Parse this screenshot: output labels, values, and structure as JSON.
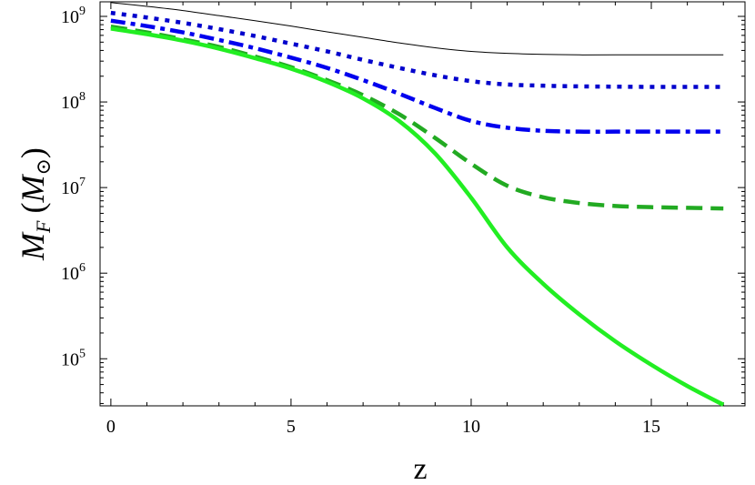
{
  "chart_data": {
    "type": "line",
    "title": "",
    "xlabel": "z",
    "ylabel": {
      "main": "M",
      "sub": "F",
      "paren_open": "(",
      "unit_main": "M",
      "unit_sub": "⊙",
      "paren_close": ")"
    },
    "xlim": [
      -0.3,
      17.6
    ],
    "ylim_log10": [
      4.45,
      9.17
    ],
    "yscale": "log",
    "grid": false,
    "x_ticks": [
      {
        "value": 0,
        "label": "0"
      },
      {
        "value": 5,
        "label": "5"
      },
      {
        "value": 10,
        "label": "10"
      },
      {
        "value": 15,
        "label": "15"
      }
    ],
    "y_ticks": [
      {
        "value": 100000,
        "base": "10",
        "exp": "5"
      },
      {
        "value": 1000000,
        "base": "10",
        "exp": "6"
      },
      {
        "value": 10000000,
        "base": "10",
        "exp": "7"
      },
      {
        "value": 100000000,
        "base": "10",
        "exp": "8"
      },
      {
        "value": 1000000000,
        "base": "10",
        "exp": "9"
      }
    ],
    "x": [
      0,
      1,
      2,
      3,
      4,
      5,
      6,
      7,
      8,
      9,
      10,
      11,
      12,
      13,
      14,
      15,
      16,
      17
    ],
    "series": [
      {
        "color": "#000000",
        "style": "solid-thin",
        "values": [
          1450000000.0,
          1310000000.0,
          1170000000.0,
          1020000000.0,
          890000000.0,
          770000000.0,
          660000000.0,
          570000000.0,
          490000000.0,
          430000000.0,
          390000000.0,
          370000000.0,
          360000000.0,
          355000000.0,
          355000000.0,
          355000000.0,
          355000000.0,
          355000000.0
        ]
      },
      {
        "color": "#0000cc",
        "style": "dotted",
        "values": [
          1100000000.0,
          970000000.0,
          840000000.0,
          710000000.0,
          590000000.0,
          480000000.0,
          390000000.0,
          310000000.0,
          250000000.0,
          205000000.0,
          175000000.0,
          160000000.0,
          155000000.0,
          152000000.0,
          151000000.0,
          150000000.0,
          150000000.0,
          150000000.0
        ]
      },
      {
        "color": "#0000ee",
        "style": "dash-dot",
        "values": [
          890000000.0,
          770000000.0,
          650000000.0,
          530000000.0,
          425000000.0,
          330000000.0,
          250000000.0,
          180000000.0,
          125000000.0,
          85000000.0,
          60000000.0,
          50000000.0,
          46000000.0,
          45000000.0,
          45000000.0,
          45000000.0,
          45000000.0,
          45000000.0
        ]
      },
      {
        "color": "#22aa22",
        "style": "dashed",
        "values": [
          760000000.0,
          650000000.0,
          540000000.0,
          440000000.0,
          340000000.0,
          255000000.0,
          180000000.0,
          120000000.0,
          72000000.0,
          38000000.0,
          19000000.0,
          10500000.0,
          7700000.0,
          6600000.0,
          6100000.0,
          5900000.0,
          5800000.0,
          5700000.0
        ]
      },
      {
        "color": "#22ee22",
        "style": "solid-thick",
        "values": [
          720000000.0,
          620000000.0,
          520000000.0,
          420000000.0,
          325000000.0,
          245000000.0,
          172000000.0,
          110000000.0,
          60000000.0,
          25000000.0,
          7600000.0,
          2000000.0,
          750000.0,
          330000.0,
          160000.0,
          85000.0,
          48000.0,
          29000.0
        ]
      }
    ]
  }
}
